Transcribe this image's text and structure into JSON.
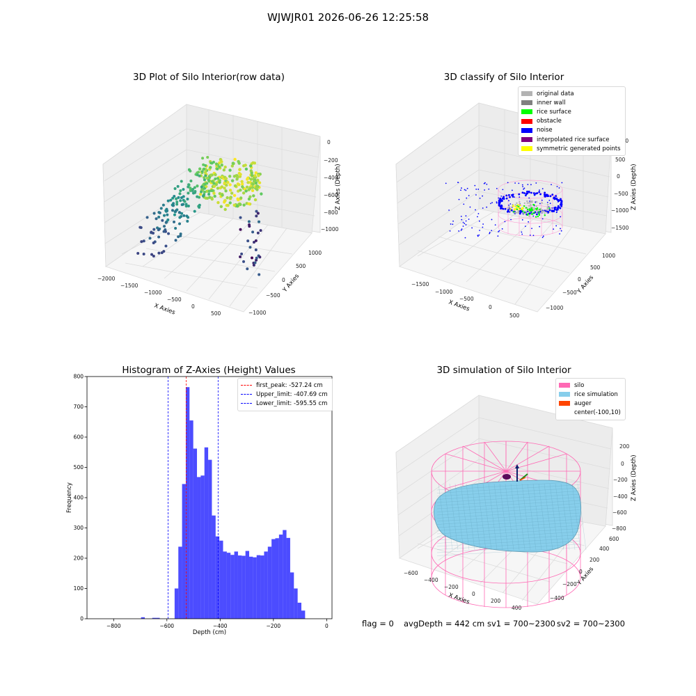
{
  "suptitle": "WJWJR01 2026-06-26 12:25:58",
  "panel1": {
    "title": "3D Plot of Silo Interior(row data)",
    "xlabel": "X Axies",
    "ylabel": "Y Axies",
    "zlabel": "Z Axies (Depth)",
    "xticks": [
      "−2000",
      "−1500",
      "−1000",
      "−500",
      "0",
      "500"
    ],
    "yticks": [
      "−1000",
      "−500",
      "0",
      "500",
      "1000"
    ],
    "zticks": [
      "0",
      "−200",
      "−400",
      "−600",
      "−800",
      "−1000"
    ]
  },
  "panel2": {
    "title": "3D classify of Silo Interior",
    "xlabel": "X Axies",
    "ylabel": "Y Axies",
    "zlabel": "Z Axies (Depth)",
    "xticks": [
      "−1500",
      "−1000",
      "−500",
      "0",
      "500"
    ],
    "yticks": [
      "−1000",
      "−500",
      "0",
      "500",
      "1000"
    ],
    "zticks": [
      "1000",
      "500",
      "0",
      "−500",
      "−1000",
      "−1500"
    ],
    "legend": [
      {
        "label": "original data",
        "color": "#b3b3b3"
      },
      {
        "label": "inner wall",
        "color": "#808080"
      },
      {
        "label": "rice surface",
        "color": "#00ff00"
      },
      {
        "label": "obstacle",
        "color": "#ff0000"
      },
      {
        "label": "noise",
        "color": "#0000ff"
      },
      {
        "label": "interpolated rice surface",
        "color": "#800080"
      },
      {
        "label": "symmetric generated points",
        "color": "#ffff00"
      }
    ]
  },
  "panel3": {
    "legend": [
      {
        "label": "first_peak: -527.24 cm",
        "color": "#ff0000"
      },
      {
        "label": "Upper_limit: -407.69 cm",
        "color": "#0000ff"
      },
      {
        "label": "Lower_limit: -595.55 cm",
        "color": "#0000ff"
      }
    ]
  },
  "panel4": {
    "title": "3D simulation of Silo Interior",
    "xlabel": "X Axies",
    "ylabel": "Y Axies",
    "zlabel": "Z Axies (Depth)",
    "xticks": [
      "−600",
      "−400",
      "−200",
      "0",
      "200",
      "400"
    ],
    "yticks": [
      "−400",
      "−200",
      "0",
      "200",
      "400",
      "600"
    ],
    "zticks": [
      "200",
      "0",
      "−200",
      "−400",
      "−600",
      "−800"
    ],
    "legend": [
      {
        "label": "silo",
        "color": "#ff69b4"
      },
      {
        "label": "rice simulation",
        "color": "#87ceeb"
      },
      {
        "label": "auger",
        "color": "#ff4500"
      },
      {
        "label": "center(-100,10)",
        "color": ""
      }
    ]
  },
  "footer": {
    "flag": "flag = 0",
    "avg": "avgDepth = 442 cm",
    "sv1": "sv1 = 700~2300",
    "sv2": "sv2 = 700~2300"
  },
  "chart_data": [
    {
      "type": "scatter",
      "title": "3D Plot of Silo Interior(row data)",
      "xlabel": "X Axies",
      "ylabel": "Y Axies",
      "zlabel": "Z Axies (Depth)",
      "xlim": [
        -2100,
        800
      ],
      "ylim": [
        -1100,
        1200
      ],
      "zlim": [
        -1100,
        0
      ]
    },
    {
      "type": "scatter",
      "title": "3D classify of Silo Interior",
      "xlabel": "X Axies",
      "ylabel": "Y Axies",
      "zlabel": "Z Axies (Depth)",
      "legend": [
        "original data",
        "inner wall",
        "rice surface",
        "obstacle",
        "noise",
        "interpolated rice surface",
        "symmetric generated points"
      ],
      "legend_position": "top-right"
    },
    {
      "type": "bar",
      "title": "Histogram of Z-Axies (Height) Values",
      "xlabel": "Depth (cm)",
      "ylabel": "Frequency",
      "xlim": [
        -900,
        20
      ],
      "ylim": [
        0,
        800
      ],
      "xticks": [
        -800,
        -600,
        -400,
        -200,
        0
      ],
      "yticks": [
        0,
        100,
        200,
        300,
        400,
        500,
        600,
        700,
        800
      ],
      "bin_width": 14,
      "bins": [
        [
          -690,
          5
        ],
        [
          -648,
          3
        ],
        [
          -634,
          3
        ],
        [
          -564,
          100
        ],
        [
          -550,
          238
        ],
        [
          -536,
          445
        ],
        [
          -522,
          765
        ],
        [
          -508,
          655
        ],
        [
          -494,
          562
        ],
        [
          -480,
          468
        ],
        [
          -466,
          473
        ],
        [
          -452,
          566
        ],
        [
          -438,
          525
        ],
        [
          -424,
          341
        ],
        [
          -410,
          272
        ],
        [
          -396,
          258
        ],
        [
          -382,
          222
        ],
        [
          -368,
          218
        ],
        [
          -354,
          211
        ],
        [
          -340,
          222
        ],
        [
          -326,
          209
        ],
        [
          -312,
          208
        ],
        [
          -298,
          224
        ],
        [
          -284,
          205
        ],
        [
          -270,
          203
        ],
        [
          -256,
          210
        ],
        [
          -242,
          209
        ],
        [
          -228,
          222
        ],
        [
          -214,
          238
        ],
        [
          -200,
          263
        ],
        [
          -186,
          266
        ],
        [
          -172,
          278
        ],
        [
          -158,
          293
        ],
        [
          -144,
          267
        ],
        [
          -130,
          153
        ],
        [
          -116,
          100
        ],
        [
          -102,
          53
        ],
        [
          -88,
          27
        ]
      ],
      "vlines": [
        {
          "label": "first_peak: -527.24 cm",
          "x": -527.24,
          "color": "#ff0000"
        },
        {
          "label": "Upper_limit: -407.69 cm",
          "x": -407.69,
          "color": "#0000ff"
        },
        {
          "label": "Lower_limit: -595.55 cm",
          "x": -595.55,
          "color": "#0000ff"
        }
      ],
      "legend_position": "top-right"
    },
    {
      "type": "scatter",
      "title": "3D simulation of Silo Interior",
      "xlabel": "X Axies",
      "ylabel": "Y Axies",
      "zlabel": "Z Axies (Depth)",
      "legend": [
        "silo",
        "rice simulation",
        "auger",
        "center(-100,10)"
      ],
      "legend_position": "top-right"
    }
  ]
}
